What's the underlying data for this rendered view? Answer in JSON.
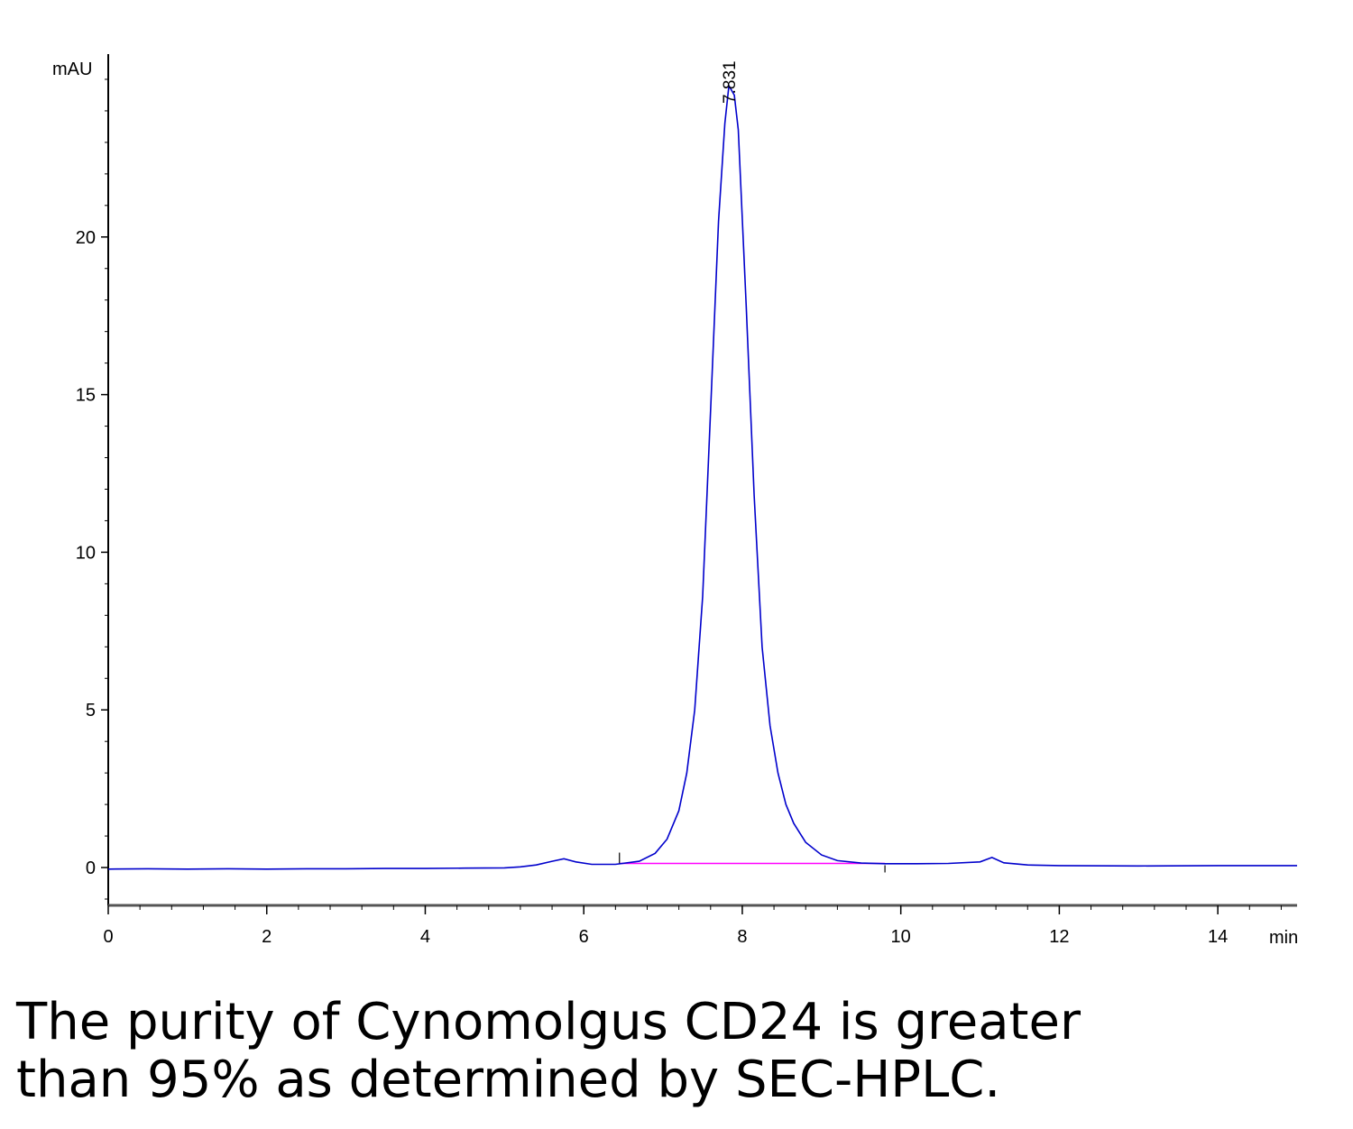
{
  "chart_data": {
    "type": "line",
    "title": "",
    "xlabel": "min",
    "ylabel": "mAU",
    "xlim": [
      0,
      15
    ],
    "ylim": [
      -1.2,
      25.8
    ],
    "x_ticks": [
      0,
      2,
      4,
      6,
      8,
      10,
      12,
      14
    ],
    "y_ticks": [
      0,
      5,
      10,
      15,
      20
    ],
    "grid": false,
    "series": [
      {
        "color": "#0000cc",
        "x": [
          0,
          0.5,
          1,
          1.5,
          2,
          2.5,
          3,
          3.5,
          4,
          4.5,
          5,
          5.2,
          5.4,
          5.6,
          5.75,
          5.9,
          6.1,
          6.4,
          6.7,
          6.9,
          7.05,
          7.2,
          7.3,
          7.4,
          7.5,
          7.6,
          7.7,
          7.78,
          7.831,
          7.9,
          7.95,
          8.05,
          8.15,
          8.25,
          8.35,
          8.45,
          8.55,
          8.65,
          8.8,
          9.0,
          9.2,
          9.5,
          9.8,
          10.2,
          10.6,
          11.0,
          11.15,
          11.3,
          11.6,
          12.0,
          13.0,
          14.0,
          15.0
        ],
        "y": [
          -0.05,
          -0.04,
          -0.05,
          -0.04,
          -0.05,
          -0.04,
          -0.04,
          -0.03,
          -0.03,
          -0.02,
          -0.01,
          0.02,
          0.08,
          0.2,
          0.28,
          0.18,
          0.1,
          0.1,
          0.2,
          0.45,
          0.9,
          1.8,
          3.0,
          5.0,
          8.6,
          14.5,
          20.5,
          23.6,
          24.8,
          24.5,
          23.4,
          17.8,
          11.8,
          7.0,
          4.5,
          3.0,
          2.0,
          1.4,
          0.8,
          0.4,
          0.22,
          0.14,
          0.12,
          0.12,
          0.13,
          0.18,
          0.32,
          0.15,
          0.08,
          0.06,
          0.05,
          0.06,
          0.06
        ]
      }
    ],
    "baseline": {
      "color": "#ff00ff",
      "x": [
        6.45,
        9.8
      ],
      "y": [
        0.13,
        0.13
      ]
    },
    "integration_marks_x": [
      6.45,
      9.8
    ],
    "annotations": [
      {
        "text": "7.831",
        "x": 7.831,
        "y": 24.8
      }
    ]
  },
  "caption": {
    "line1": "The purity of Cynomolgus CD24 is greater",
    "line2": "than 95% as determined by SEC-HPLC."
  }
}
